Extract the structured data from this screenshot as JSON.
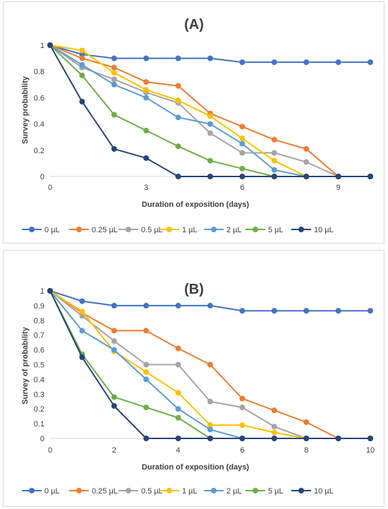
{
  "chart_data": [
    {
      "type": "line",
      "title": "(A)",
      "xlabel": "Duration of exposition (days)",
      "ylabel": "Survey probability",
      "xlim": [
        0,
        10
      ],
      "ylim": [
        0,
        1
      ],
      "x_ticks": [
        0,
        3,
        6,
        9
      ],
      "y_ticks": [
        0,
        0.2,
        0.4,
        0.6,
        0.8,
        1
      ],
      "grid": false,
      "legend_position": "bottom",
      "x": [
        0,
        1,
        2,
        3,
        4,
        5,
        6,
        7,
        8,
        9,
        10
      ],
      "series": [
        {
          "name": "0 µL",
          "color": "#4472c4",
          "values": [
            1,
            0.93,
            0.9,
            0.9,
            0.9,
            0.9,
            0.87,
            0.87,
            0.87,
            0.87,
            0.87
          ]
        },
        {
          "name": "0.25 µL",
          "color": "#ed7d31",
          "values": [
            1,
            0.9,
            0.83,
            0.72,
            0.69,
            0.48,
            0.38,
            0.28,
            0.21,
            0,
            0
          ]
        },
        {
          "name": "0.5 µL",
          "color": "#a5a5a5",
          "values": [
            1,
            0.83,
            0.74,
            0.64,
            0.56,
            0.33,
            0.18,
            0.18,
            0.11,
            0,
            0
          ]
        },
        {
          "name": "1 µL",
          "color": "#ffc000",
          "values": [
            1,
            0.96,
            0.79,
            0.66,
            0.58,
            0.46,
            0.29,
            0.12,
            0,
            0,
            0
          ]
        },
        {
          "name": "2 µL",
          "color": "#5b9bd5",
          "values": [
            1,
            0.85,
            0.7,
            0.6,
            0.45,
            0.4,
            0.25,
            0.05,
            0,
            0,
            0
          ]
        },
        {
          "name": "5 µL",
          "color": "#70ad47",
          "values": [
            1,
            0.77,
            0.47,
            0.35,
            0.23,
            0.12,
            0.06,
            0,
            0,
            0,
            0
          ]
        },
        {
          "name": "10 µL",
          "color": "#264478",
          "values": [
            1,
            0.57,
            0.21,
            0.14,
            0,
            0,
            0,
            0,
            0,
            0,
            0
          ]
        }
      ]
    },
    {
      "type": "line",
      "title": "(B)",
      "xlabel": "Duration of exposition (days)",
      "ylabel": "Survey of probability",
      "xlim": [
        0,
        10
      ],
      "ylim": [
        0,
        1
      ],
      "x_ticks": [
        0,
        2,
        4,
        6,
        8,
        10
      ],
      "y_ticks": [
        0,
        0.1,
        0.2,
        0.3,
        0.4,
        0.5,
        0.6,
        0.7,
        0.8,
        0.9,
        1
      ],
      "grid": false,
      "legend_position": "bottom",
      "x": [
        0,
        1,
        2,
        3,
        4,
        5,
        6,
        7,
        8,
        9,
        10
      ],
      "series": [
        {
          "name": "0 µL",
          "color": "#4472c4",
          "values": [
            1,
            0.93,
            0.9,
            0.9,
            0.9,
            0.9,
            0.865,
            0.865,
            0.865,
            0.865,
            0.865
          ]
        },
        {
          "name": "0.25 µL",
          "color": "#ed7d31",
          "values": [
            1,
            0.85,
            0.73,
            0.73,
            0.61,
            0.5,
            0.27,
            0.19,
            0.11,
            0,
            0
          ]
        },
        {
          "name": "0.5 µL",
          "color": "#a5a5a5",
          "values": [
            1,
            0.83,
            0.66,
            0.5,
            0.5,
            0.25,
            0.21,
            0.08,
            0,
            0,
            0
          ]
        },
        {
          "name": "1 µL",
          "color": "#ffc000",
          "values": [
            1,
            0.86,
            0.59,
            0.45,
            0.31,
            0.09,
            0.09,
            0.04,
            0,
            0,
            0
          ]
        },
        {
          "name": "2 µL",
          "color": "#5b9bd5",
          "values": [
            1,
            0.73,
            0.6,
            0.4,
            0.2,
            0.06,
            0,
            0,
            0,
            0,
            0
          ]
        },
        {
          "name": "5 µL",
          "color": "#70ad47",
          "values": [
            1,
            0.57,
            0.28,
            0.21,
            0.14,
            0,
            0,
            0,
            0,
            0,
            0
          ]
        },
        {
          "name": "10 µL",
          "color": "#264478",
          "values": [
            1,
            0.55,
            0.22,
            0,
            0,
            0,
            0,
            0,
            0,
            0,
            0
          ]
        }
      ]
    }
  ]
}
